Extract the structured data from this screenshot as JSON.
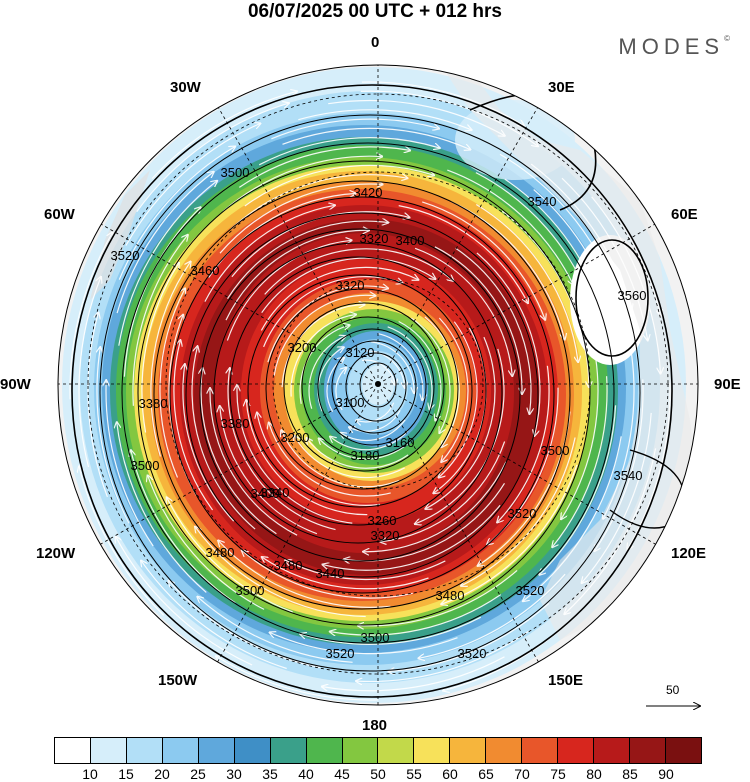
{
  "title": "06/07/2025  00 UTC  + 012 hrs",
  "brand": "MODES",
  "brand_mark": "©",
  "longitude_labels": {
    "top": "0",
    "right": "90E",
    "bottom": "180",
    "left": "90W",
    "ne30": "30E",
    "ne60": "60E",
    "se120": "120E",
    "se150": "150E",
    "sw150": "150W",
    "sw120": "120W",
    "nw60": "60W",
    "nw30": "30W"
  },
  "vector_reference": {
    "label": "50"
  },
  "colorbar": {
    "ticks": [
      "10",
      "15",
      "20",
      "25",
      "30",
      "35",
      "40",
      "45",
      "50",
      "55",
      "60",
      "65",
      "70",
      "75",
      "80",
      "85",
      "90"
    ],
    "colors": [
      "#ffffff",
      "#d6eefa",
      "#b2dff7",
      "#8ccaf0",
      "#5fa8dc",
      "#3f8fc6",
      "#3aa08a",
      "#4fb64d",
      "#83c740",
      "#c2d94a",
      "#f7e15a",
      "#f6b53c",
      "#f18b30",
      "#e8562a",
      "#d7261e",
      "#b71a1a",
      "#961616",
      "#7a1010"
    ]
  },
  "contour_labels": [
    "3500",
    "3520",
    "3540",
    "3560",
    "3460",
    "3420",
    "3400",
    "3320",
    "3320",
    "3200",
    "3120",
    "3100",
    "3160",
    "3180",
    "3200",
    "3260",
    "3320",
    "3340",
    "3380",
    "3400",
    "3440",
    "3480",
    "3480",
    "3500",
    "3520",
    "3520",
    "3500",
    "3540",
    "3520",
    "3520",
    "3500",
    "3480",
    "3380",
    "3500"
  ],
  "colors": {
    "background": "#ffffff",
    "land": "#e6e6e6",
    "contour": "#000000",
    "streamline": "#ffffff"
  }
}
